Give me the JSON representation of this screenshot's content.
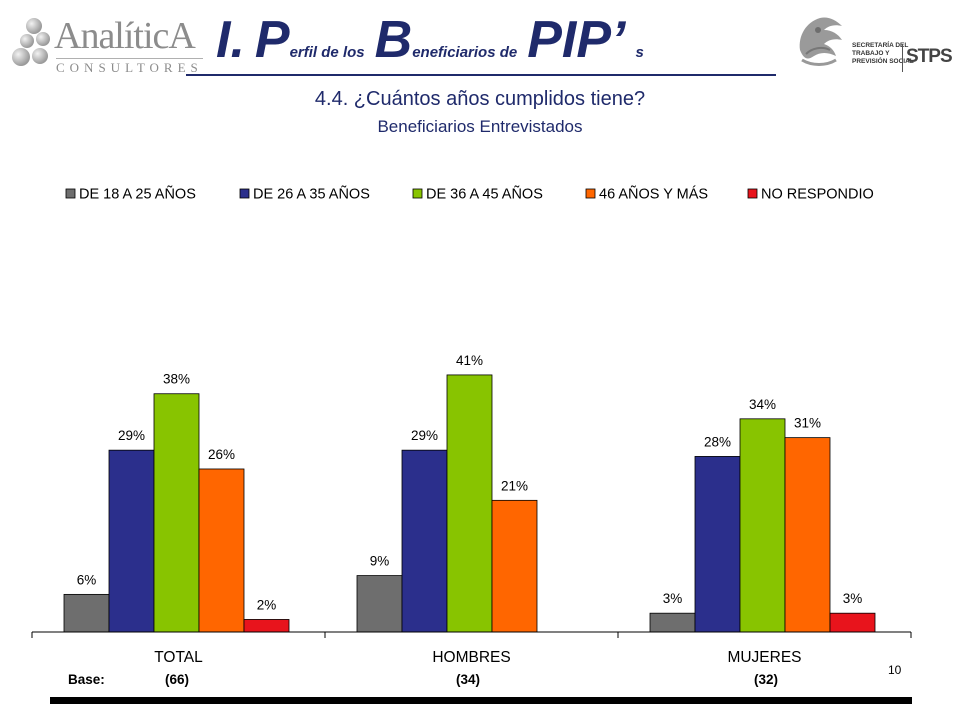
{
  "header": {
    "logo_left": {
      "brand": "AnalíticA",
      "sub": "CONSULTORES"
    },
    "title": {
      "p1": "I.",
      "p2": "P",
      "p3": "erfil de los",
      "p4": "B",
      "p5": "eneficiarios de",
      "p6": "PIP’",
      "p7": "s"
    },
    "logo_right": {
      "line1": "SECRETARÍA DEL",
      "line2": "TRABAJO Y",
      "line3": "PREVISIÓN SOCIAL",
      "letters": "STPS"
    }
  },
  "question": {
    "title": "4.4.  ¿Cuántos años cumplidos tiene?",
    "subtitle": "Beneficiarios Entrevistados"
  },
  "chart_data": {
    "type": "bar",
    "categories": [
      "TOTAL",
      "HOMBRES",
      "MUJERES"
    ],
    "series": [
      {
        "name": "DE 18 A 25 AÑOS",
        "color": "#6e6e6e",
        "values": [
          6,
          9,
          3
        ],
        "labels": [
          "6%",
          "9%",
          "3%"
        ]
      },
      {
        "name": "DE 26 A 35 AÑOS",
        "color": "#2b2f8c",
        "values": [
          29,
          29,
          28
        ],
        "labels": [
          "29%",
          "29%",
          "28%"
        ]
      },
      {
        "name": "DE 36 A 45 AÑOS",
        "color": "#88c400",
        "values": [
          38,
          41,
          34
        ],
        "labels": [
          "38%",
          "41%",
          "34%"
        ]
      },
      {
        "name": "46 AÑOS Y MÁS",
        "color": "#ff6600",
        "values": [
          26,
          21,
          31
        ],
        "labels": [
          "26%",
          "21%",
          "31%"
        ]
      },
      {
        "name": "NO RESPONDIO",
        "color": "#e8141c",
        "values": [
          2,
          null,
          3
        ],
        "labels": [
          "2%",
          "",
          "3%"
        ]
      }
    ],
    "ylim": [
      0,
      45
    ],
    "grid": false,
    "legend": "top",
    "base_label": "Base:",
    "bases": [
      "(66)",
      "(34)",
      "(32)"
    ]
  },
  "page_number": "10"
}
